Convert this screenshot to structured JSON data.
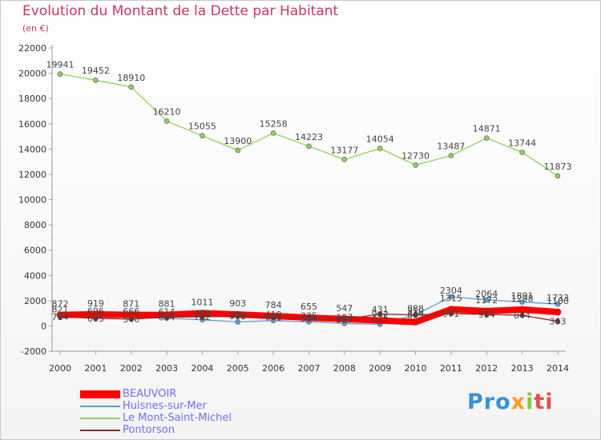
{
  "chart_data": {
    "type": "line",
    "title": "Evolution du Montant de la Dette par Habitant",
    "subtitle": "(en €)",
    "x": [
      "2000",
      "2001",
      "2002",
      "2003",
      "2004",
      "2005",
      "2006",
      "2007",
      "2008",
      "2009",
      "2010",
      "2011",
      "2012",
      "2013",
      "2014"
    ],
    "ylim": [
      -2000,
      22000
    ],
    "yticks": [
      -2000,
      0,
      2000,
      4000,
      6000,
      8000,
      10000,
      12000,
      14000,
      16000,
      18000,
      20000,
      22000
    ],
    "grid": false,
    "legend_position": "bottom-left",
    "series": [
      {
        "name": "BEAUVOIR",
        "color": "#ff0000",
        "values": [
          872,
          919,
          871,
          881,
          1011,
          903,
          784,
          655,
          547,
          431,
          310,
          1315,
          1172,
          1298,
          1100
        ],
        "labels": [
          "872",
          "919",
          "871",
          "881",
          "1011",
          "903",
          "784",
          "655",
          "547",
          "431",
          "310",
          "1315",
          "1172",
          "1298",
          "1100"
        ]
      },
      {
        "name": "Huisnes-sur-Mer",
        "color": "#5a9fd4",
        "values": [
          821,
          696,
          666,
          614,
          489,
          318,
          419,
          325,
          197,
          125,
          888,
          2304,
          2064,
          1891,
          1733
        ],
        "labels": [
          "821",
          "696",
          "666",
          "614",
          "489",
          "318",
          "419",
          "325",
          "197",
          "125",
          "888",
          "2304",
          "2064",
          "1891",
          "1733"
        ]
      },
      {
        "name": "Le Mont-Saint-Michel",
        "color": "#8cd25a",
        "values": [
          19941,
          19452,
          18910,
          16210,
          15055,
          13900,
          15258,
          14223,
          13177,
          14054,
          12730,
          13487,
          14871,
          13744,
          11873
        ],
        "labels": [
          "19941",
          "19452",
          "18910",
          "16210",
          "15055",
          "13900",
          "15258",
          "14223",
          "13177",
          "14054",
          "12730",
          "13487",
          "14871",
          "13744",
          "11873"
        ]
      },
      {
        "name": "Pontorson",
        "color": "#8b2a2a",
        "values": [
          714,
          605,
          540,
          694,
          722,
          773,
          691,
          594,
          517,
          942,
          869,
          971,
          914,
          844,
          363
        ],
        "labels": [
          "714",
          "605",
          "540",
          "694",
          "722",
          "773",
          "691",
          "594",
          "517",
          "942",
          "869",
          "971",
          "914",
          "844",
          "363"
        ]
      }
    ]
  },
  "legend": [
    {
      "label": "BEAUVOIR",
      "color": "#ff0000"
    },
    {
      "label": "Huisnes-sur-Mer",
      "color": "#5a9fd4"
    },
    {
      "label": "Le Mont-Saint-Michel",
      "color": "#8cd25a"
    },
    {
      "label": "Pontorson",
      "color": "#8b2a2a"
    }
  ],
  "logo": {
    "part1": "Pro",
    "part2": "x",
    "part3": "i",
    "part4": "ti"
  }
}
